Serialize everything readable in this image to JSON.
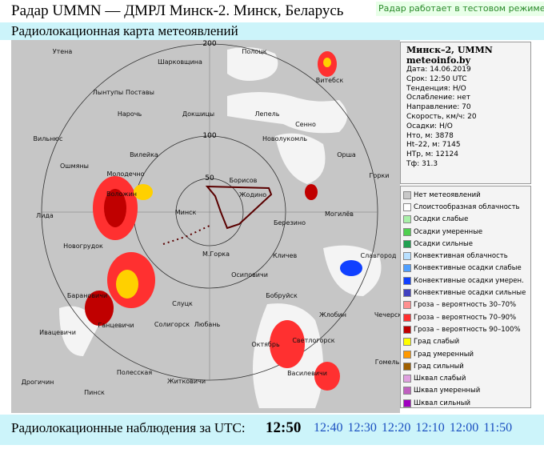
{
  "header": {
    "title": "Радар UMMN — ДМРЛ Минск-2. Минск, Беларусь",
    "notice": "Радар работает в тестовом режиме по",
    "subtitle": "Радиолокационная карта метеоявлений"
  },
  "map": {
    "ring_labels": [
      "50",
      "100",
      "200"
    ],
    "cities": [
      "Утена",
      "Шарковщина",
      "Полоцк",
      "Лынтупы",
      "Поставы",
      "Витебск",
      "Нарочь",
      "Докшицы",
      "Лепель",
      "Сенно",
      "Новолукомль",
      "Вильнюс",
      "Вилейка",
      "Орша",
      "Ошмяны",
      "Молодечно",
      "Борисов",
      "Жодино",
      "Горки",
      "Воложин",
      "Лида",
      "Минск",
      "Березино",
      "Могилёв",
      "Новогрудок",
      "М.Горка",
      "Кличев",
      "Славгород",
      "Осиповичи",
      "Барановичи",
      "Бобруйск",
      "Слуцк",
      "Жлобин",
      "Ганцевичи",
      "Солигорск",
      "Любань",
      "Чечерск",
      "Ивацевичи",
      "Октябрь",
      "Светлогорск",
      "Гомель",
      "Полесская",
      "Василевичи",
      "Дрогичин",
      "Житковичи",
      "Пинск"
    ]
  },
  "info": {
    "lines": [
      "Минск–2, UMMN",
      "meteoinfo.by",
      "Дата: 14.06.2019",
      "Срок: 12:50 UTC",
      "Тенденция: Н/О",
      "Ослабление: нет",
      "Направление: 70",
      "Скорость, км/ч: 20",
      "Осадки: Н/О",
      "Hто, м: 3878",
      "Ht–22, м: 7145",
      "НТр, м: 12124",
      "Тф: 31.3"
    ]
  },
  "legend": {
    "items": [
      {
        "label": "Нет метеоявлений",
        "color": "#c8c8c8"
      },
      {
        "label": "Слоистообразная облачность",
        "color": "#ffffff"
      },
      {
        "label": "Осадки слабые",
        "color": "#a8f0a8"
      },
      {
        "label": "Осадки умеренные",
        "color": "#50d050"
      },
      {
        "label": "Осадки сильные",
        "color": "#20a050"
      },
      {
        "label": "Конвективная облачность",
        "color": "#b8e0ff"
      },
      {
        "label": "Конвективные осадки слабые",
        "color": "#50a0ff"
      },
      {
        "label": "Конвективные осадки умерен.",
        "color": "#1040ff"
      },
      {
        "label": "Конвективные осадки сильные",
        "color": "#4040c0"
      },
      {
        "label": "Гроза – вероятность 30–70%",
        "color": "#ff9090"
      },
      {
        "label": "Гроза – вероятность 70–90%",
        "color": "#ff3030"
      },
      {
        "label": "Гроза – вероятность 90–100%",
        "color": "#c00000"
      },
      {
        "label": "Град слабый",
        "color": "#ffff00"
      },
      {
        "label": "Град умеренный",
        "color": "#ff9900"
      },
      {
        "label": "Град сильный",
        "color": "#a06000"
      },
      {
        "label": "Шквал слабый",
        "color": "#e0a0e0"
      },
      {
        "label": "Шквал умеренный",
        "color": "#c060c0"
      },
      {
        "label": "Шквал сильный",
        "color": "#a000c0"
      }
    ]
  },
  "bottom": {
    "label": "Радиолокационные наблюдения за UTC:",
    "current": "12:50",
    "times": [
      "12:40",
      "12:30",
      "12:20",
      "12:10",
      "12:00",
      "11:50"
    ]
  }
}
